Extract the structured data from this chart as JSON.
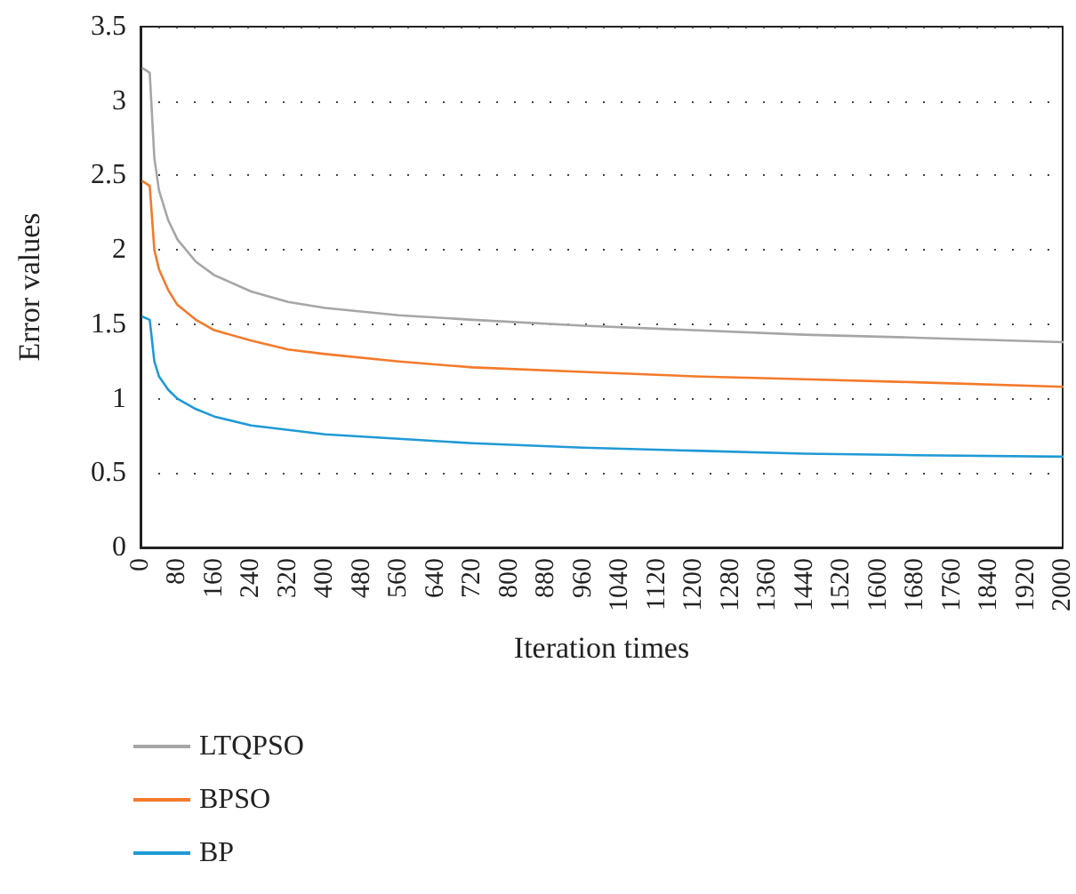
{
  "chart_data": {
    "type": "line",
    "xlabel": "Iteration times",
    "ylabel": "Error values",
    "xlim": [
      0,
      2000
    ],
    "xticks": [
      0,
      80,
      160,
      240,
      320,
      400,
      480,
      560,
      640,
      720,
      800,
      880,
      960,
      1040,
      1120,
      1200,
      1280,
      1360,
      1440,
      1520,
      1600,
      1680,
      1760,
      1840,
      1920,
      2000
    ],
    "ylim": [
      0,
      3.5
    ],
    "yticks": [
      0,
      0.5,
      1,
      1.5,
      2,
      2.5,
      3,
      3.5
    ],
    "grid": "y",
    "legend": "bottom left",
    "marker": "none",
    "line_style": "solid",
    "series": [
      {
        "name": "LTQPSO",
        "color": "#a6a6a6",
        "x": [
          5,
          20,
          30,
          40,
          60,
          80,
          120,
          160,
          240,
          320,
          400,
          560,
          720,
          960,
          1200,
          1440,
          1680,
          2000
        ],
        "values": [
          3.22,
          3.19,
          2.62,
          2.4,
          2.2,
          2.07,
          1.92,
          1.83,
          1.72,
          1.65,
          1.61,
          1.56,
          1.53,
          1.49,
          1.46,
          1.43,
          1.41,
          1.38
        ]
      },
      {
        "name": "BPSO",
        "color": "#f47a2a",
        "x": [
          5,
          20,
          30,
          40,
          60,
          80,
          120,
          160,
          240,
          320,
          400,
          560,
          720,
          960,
          1200,
          1440,
          1680,
          2000
        ],
        "values": [
          2.46,
          2.43,
          2.0,
          1.87,
          1.73,
          1.63,
          1.53,
          1.46,
          1.39,
          1.33,
          1.3,
          1.25,
          1.21,
          1.18,
          1.15,
          1.13,
          1.11,
          1.08
        ]
      },
      {
        "name": "BP",
        "color": "#1f9ad6",
        "x": [
          5,
          20,
          30,
          40,
          60,
          80,
          120,
          160,
          240,
          320,
          400,
          560,
          720,
          960,
          1200,
          1440,
          1680,
          2000
        ],
        "values": [
          1.55,
          1.53,
          1.25,
          1.15,
          1.06,
          1.0,
          0.93,
          0.88,
          0.82,
          0.79,
          0.76,
          0.73,
          0.7,
          0.67,
          0.65,
          0.63,
          0.62,
          0.61
        ]
      }
    ]
  }
}
